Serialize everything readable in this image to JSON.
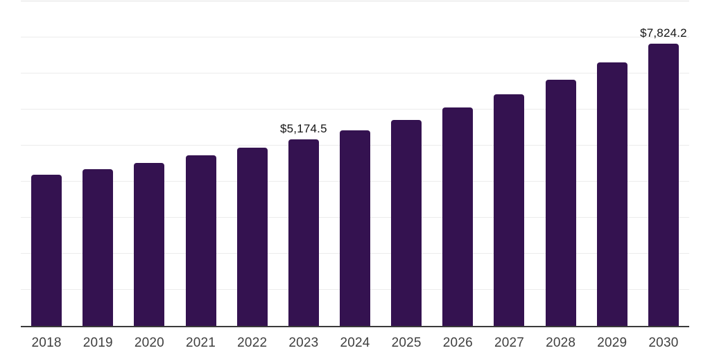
{
  "chart_data": {
    "type": "bar",
    "title": "",
    "xlabel": "",
    "ylabel": "",
    "categories": [
      "2018",
      "2019",
      "2020",
      "2021",
      "2022",
      "2023",
      "2024",
      "2025",
      "2026",
      "2027",
      "2028",
      "2029",
      "2030"
    ],
    "values": [
      4185,
      4345,
      4520,
      4730,
      4940,
      5174.5,
      5430,
      5720,
      6065,
      6425,
      6825,
      7300,
      7824.2
    ],
    "data_labels": [
      "",
      "",
      "",
      "",
      "",
      "$5,174.5",
      "",
      "",
      "",
      "",
      "",
      "",
      "$7,824.2"
    ],
    "ylim": [
      0,
      9000
    ],
    "grid_step": 1000,
    "grid": "horizontal-only",
    "legend_position": "none",
    "y_axis_labels_visible": false
  },
  "colors": {
    "bar": "#341250",
    "gridline": "#ececec",
    "top_gridline": "#e2e2e2",
    "axis_line": "#3a3a3a",
    "tick_label": "#3f3f3f",
    "value_label": "#141414",
    "background": "#ffffff"
  }
}
